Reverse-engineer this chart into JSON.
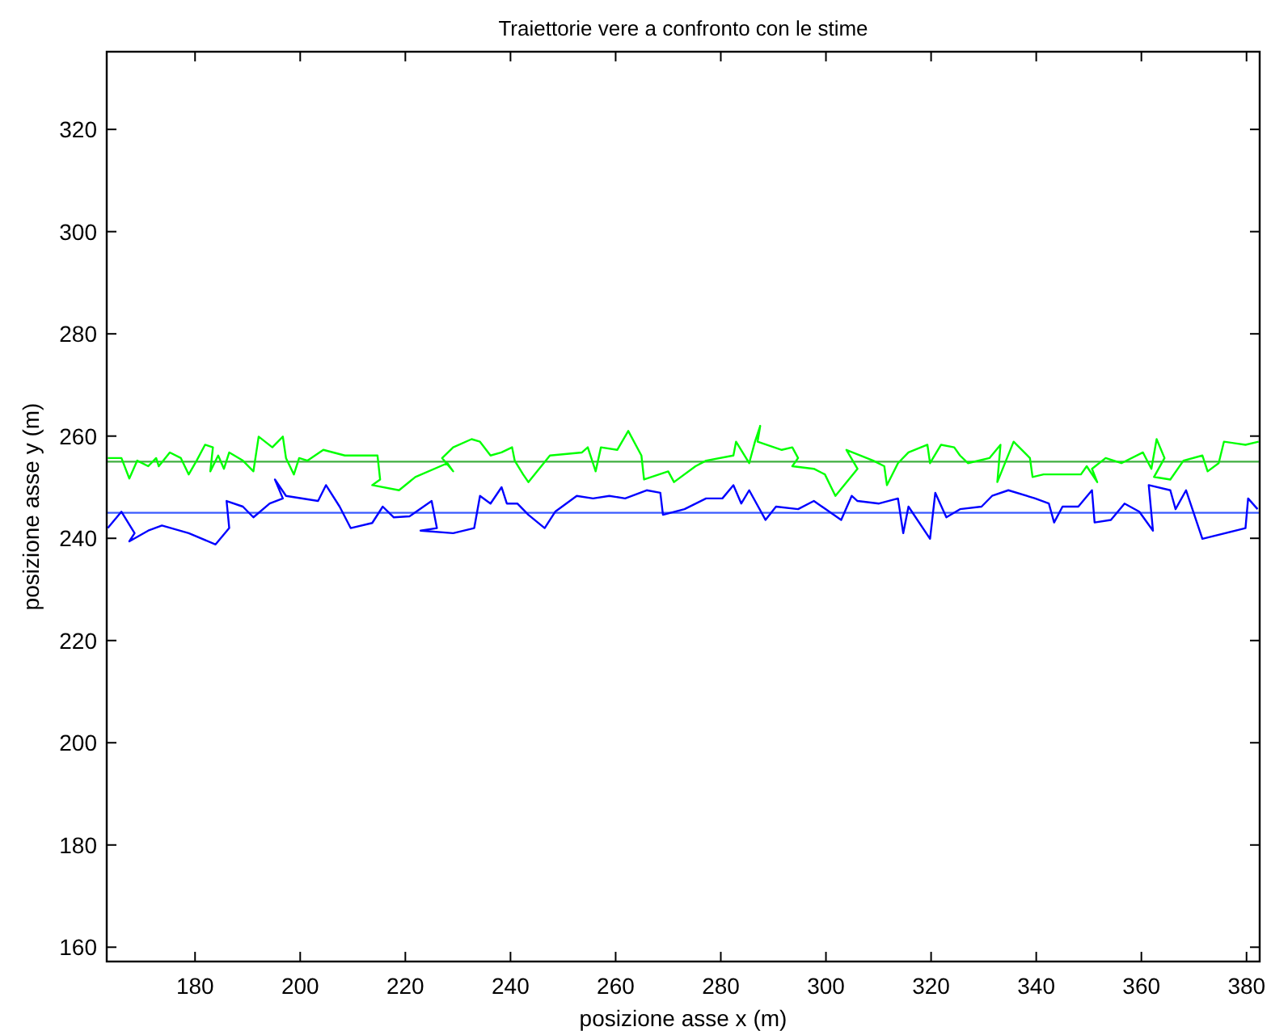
{
  "chart_data": {
    "type": "line",
    "title": "Traiettorie vere a confronto con le stime",
    "xlabel": "posizione asse x (m)",
    "ylabel": "posizione asse y (m)",
    "xlim": [
      163.2,
      382.5
    ],
    "ylim": [
      157.2,
      335.2
    ],
    "xticks": [
      180,
      200,
      220,
      240,
      260,
      280,
      300,
      320,
      340,
      360,
      380
    ],
    "yticks": [
      160,
      180,
      200,
      220,
      240,
      260,
      280,
      300,
      320
    ],
    "grid": false,
    "series": [
      {
        "color": "#3fae3f",
        "x": [
          163.2,
          382.5
        ],
        "values": [
          255,
          255
        ]
      },
      {
        "color": "#3a5bff",
        "x": [
          163.2,
          382.5
        ],
        "values": [
          245,
          245
        ]
      },
      {
        "color": "#00ff00",
        "x": [
          163.4,
          166.0,
          167.5,
          169.0,
          171.1,
          172.6,
          173.1,
          175.2,
          177.3,
          178.8,
          180.3,
          181.9,
          183.4,
          182.9,
          184.4,
          185.5,
          186.5,
          189.1,
          191.1,
          192.1,
          194.7,
          196.7,
          197.3,
          198.8,
          199.8,
          201.4,
          204.4,
          208.5,
          214.7,
          215.2,
          213.7,
          218.8,
          221.9,
          228.0,
          229.1,
          227.0,
          229.1,
          232.6,
          234.2,
          236.2,
          238.3,
          240.3,
          240.8,
          242.4,
          243.4,
          247.5,
          253.6,
          254.7,
          256.2,
          257.2,
          260.3,
          262.4,
          264.9,
          265.4,
          270.0,
          271.1,
          275.2,
          277.2,
          282.4,
          282.9,
          285.4,
          286.5,
          287.5,
          287.0,
          291.6,
          293.6,
          294.7,
          293.6,
          297.7,
          299.8,
          301.8,
          306.0,
          303.9,
          309.0,
          311.1,
          311.6,
          313.7,
          315.7,
          319.3,
          319.8,
          321.9,
          324.4,
          325.5,
          327.0,
          331.1,
          333.2,
          332.6,
          335.7,
          338.8,
          339.3,
          341.4,
          348.5,
          349.6,
          351.6,
          350.6,
          353.2,
          356.2,
          360.3,
          361.9,
          362.9,
          364.4,
          362.4,
          365.5,
          368.0,
          371.6,
          372.6,
          374.7,
          375.7,
          379.8,
          382.3
        ],
        "values": [
          255.7,
          255.7,
          251.7,
          255.2,
          254.1,
          255.7,
          254.1,
          256.8,
          255.7,
          252.5,
          255.2,
          258.3,
          257.8,
          253.1,
          256.2,
          253.6,
          256.8,
          255.2,
          253.1,
          259.9,
          257.8,
          259.9,
          255.7,
          252.5,
          255.7,
          255.2,
          257.3,
          256.2,
          256.2,
          251.5,
          250.4,
          249.4,
          252.0,
          254.7,
          253.1,
          255.7,
          257.8,
          259.4,
          258.9,
          256.2,
          256.8,
          257.8,
          255.2,
          252.5,
          251.0,
          256.2,
          256.8,
          257.8,
          253.1,
          257.8,
          257.3,
          261.0,
          256.2,
          251.5,
          253.1,
          251.0,
          254.1,
          255.2,
          256.2,
          258.9,
          254.7,
          258.9,
          262.0,
          258.9,
          257.3,
          257.8,
          255.7,
          254.1,
          253.6,
          252.5,
          248.3,
          253.6,
          257.3,
          255.2,
          254.1,
          250.4,
          254.7,
          256.8,
          258.3,
          254.7,
          258.3,
          257.8,
          256.2,
          254.7,
          255.7,
          258.3,
          251.0,
          258.9,
          255.7,
          252.0,
          252.5,
          252.5,
          254.1,
          251.0,
          253.6,
          255.7,
          254.7,
          256.8,
          253.6,
          259.4,
          255.7,
          252.0,
          251.5,
          255.2,
          256.2,
          253.1,
          254.7,
          258.9,
          258.3,
          258.9
        ]
      },
      {
        "color": "#0000ff",
        "x": [
          163.4,
          166.0,
          168.5,
          167.5,
          171.1,
          173.7,
          178.8,
          183.9,
          186.5,
          186.0,
          189.1,
          191.1,
          194.2,
          196.7,
          195.2,
          197.3,
          203.4,
          204.9,
          207.5,
          209.6,
          213.7,
          215.7,
          217.8,
          220.8,
          225.0,
          226.0,
          222.9,
          229.1,
          233.1,
          234.2,
          236.2,
          238.3,
          239.3,
          241.3,
          243.4,
          246.5,
          248.5,
          252.6,
          255.7,
          258.8,
          261.8,
          265.9,
          268.5,
          269.0,
          273.1,
          277.2,
          280.3,
          282.4,
          283.9,
          285.4,
          288.5,
          290.5,
          294.7,
          297.7,
          302.9,
          304.9,
          306.0,
          310.1,
          313.7,
          314.7,
          315.7,
          319.8,
          320.8,
          322.9,
          325.5,
          329.6,
          331.6,
          334.7,
          339.8,
          342.4,
          343.4,
          345.0,
          348.0,
          350.6,
          351.1,
          354.2,
          356.8,
          359.6,
          362.2,
          361.4,
          365.5,
          366.5,
          368.5,
          371.6,
          379.8,
          380.3,
          382.1
        ],
        "values": [
          242.0,
          245.2,
          241.0,
          239.4,
          241.5,
          242.5,
          241.0,
          238.8,
          242.0,
          247.3,
          246.2,
          244.1,
          246.8,
          247.8,
          251.5,
          248.3,
          247.3,
          250.4,
          246.2,
          242.0,
          243.0,
          246.2,
          244.1,
          244.3,
          247.3,
          242.0,
          241.5,
          241.0,
          242.0,
          248.3,
          246.8,
          250.0,
          246.8,
          246.8,
          244.6,
          242.0,
          245.2,
          248.3,
          247.8,
          248.3,
          247.8,
          249.4,
          248.9,
          244.6,
          245.7,
          247.8,
          247.8,
          250.4,
          246.8,
          249.4,
          243.6,
          246.2,
          245.7,
          247.3,
          243.6,
          248.3,
          247.3,
          246.8,
          247.8,
          241.0,
          246.2,
          239.9,
          248.9,
          244.1,
          245.7,
          246.2,
          248.3,
          249.4,
          247.8,
          246.8,
          243.1,
          246.2,
          246.2,
          249.4,
          243.1,
          243.6,
          246.8,
          245.2,
          241.5,
          250.4,
          249.4,
          245.7,
          249.4,
          239.9,
          242.0,
          247.8,
          245.7
        ]
      }
    ]
  }
}
